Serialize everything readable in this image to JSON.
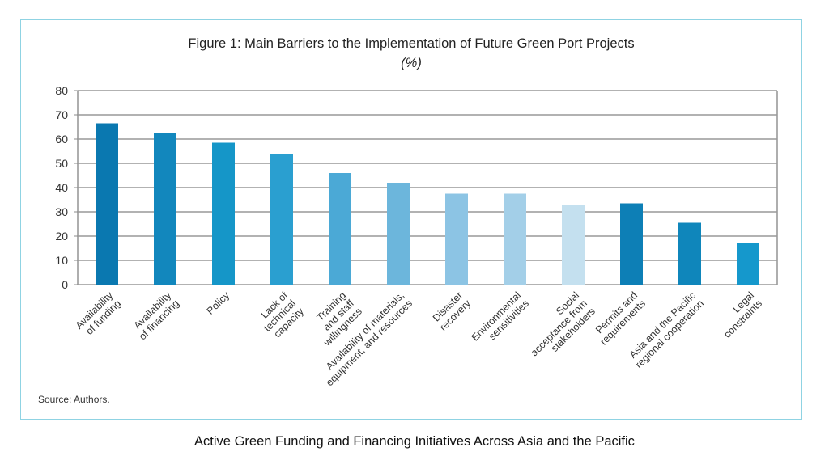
{
  "footer": {
    "caption": "Active Green Funding and Financing Initiatives Across Asia and the Pacific"
  },
  "source": "Source: Authors.",
  "chart_data": {
    "type": "bar",
    "title": "Figure 1: Main Barriers to the Implementation of Future Green Port Projects",
    "subtitle": "(%)",
    "xlabel": "",
    "ylabel": "",
    "ylim": [
      0,
      80
    ],
    "yticks": [
      0,
      10,
      20,
      30,
      40,
      50,
      60,
      70,
      80
    ],
    "grid": true,
    "categories": [
      "Availability of funding",
      "Availability of financing",
      "Policy",
      "Lack of technical capacity",
      "Training and staff willingness",
      "Availability of materials, equipment, and resources",
      "Disaster recovery",
      "Environmental sensitivities",
      "Social acceptance from stakeholders",
      "Permits and requirements",
      "Asia and the Pacific regional cooperation",
      "Legal constraints"
    ],
    "category_label_lines": [
      [
        "Availability",
        "of funding"
      ],
      [
        "Availability",
        "of financing"
      ],
      [
        "Policy"
      ],
      [
        "Lack of",
        "technical",
        "capacity"
      ],
      [
        "Training",
        "and staff",
        "willingness"
      ],
      [
        "Availability of materials,",
        "equipment, and resources"
      ],
      [
        "Disaster",
        "recovery"
      ],
      [
        "Environmental",
        "sensitivities"
      ],
      [
        "Social",
        "acceptance from",
        "stakeholders"
      ],
      [
        "Permits and",
        "requirements"
      ],
      [
        "Asia and the Pacific",
        "regional cooperation"
      ],
      [
        "Legal",
        "constraints"
      ]
    ],
    "values": [
      66.5,
      62.5,
      58.5,
      54,
      46,
      42,
      37.5,
      37.5,
      33,
      33.5,
      25.5,
      17
    ],
    "colors": [
      "#0a78b0",
      "#1287bd",
      "#1596c8",
      "#2a9fd0",
      "#4ba9d6",
      "#6cb6dc",
      "#8cc4e4",
      "#a3cfe8",
      "#c4e0ef",
      "#0d7fb6",
      "#0f86bb",
      "#1598cc"
    ]
  }
}
